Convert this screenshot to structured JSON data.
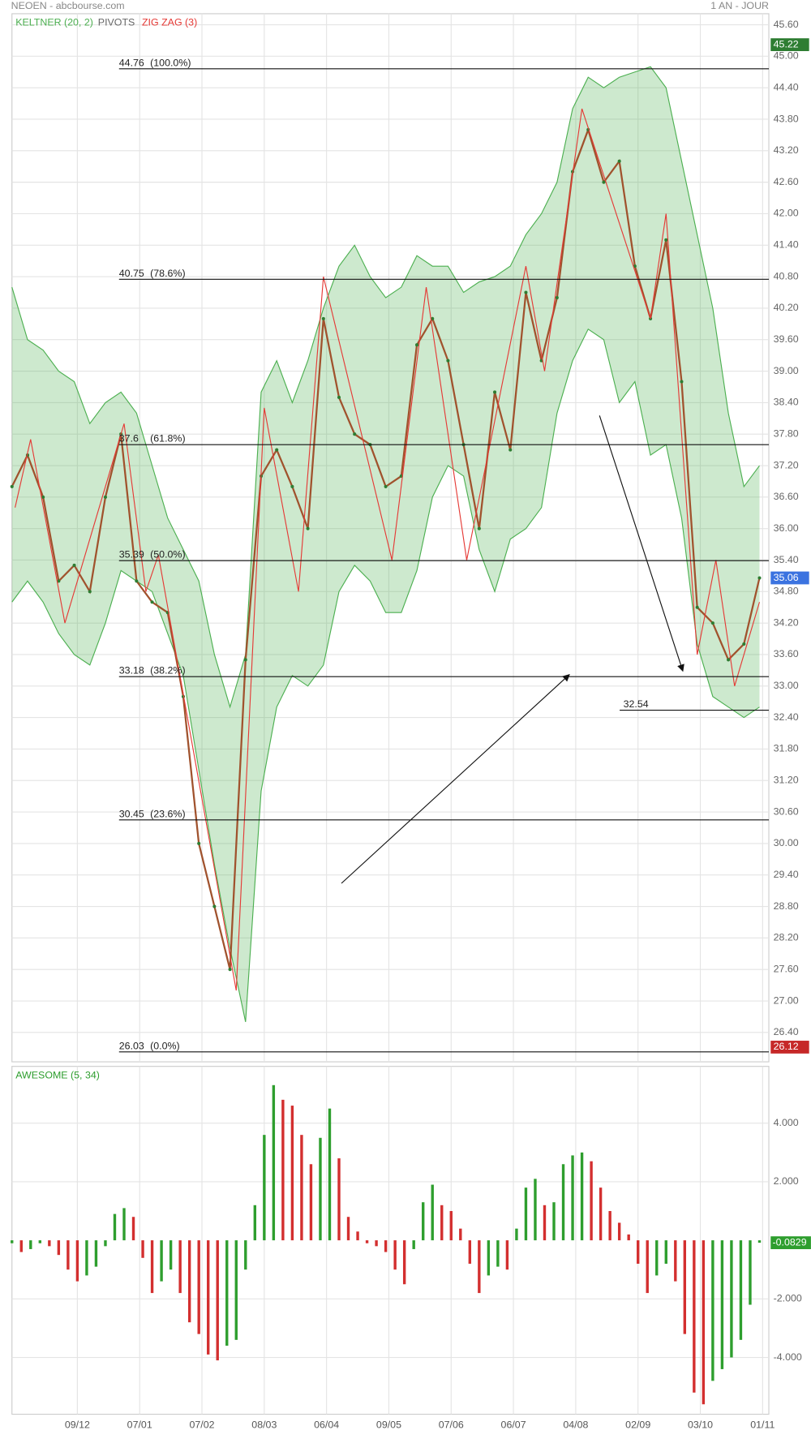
{
  "chart_data": [
    {
      "type": "line",
      "title": "NEOEN - abcbourse.com",
      "subtitle": "1 AN - JOUR",
      "xlim": [
        0,
        243
      ],
      "ylim": [
        25.84,
        45.81
      ],
      "grid": true,
      "xticks": [
        {
          "value": 21,
          "label": "09/12"
        },
        {
          "value": 41,
          "label": "07/01"
        },
        {
          "value": 61,
          "label": "07/02"
        },
        {
          "value": 81,
          "label": "08/03"
        },
        {
          "value": 101,
          "label": "06/04"
        },
        {
          "value": 121,
          "label": "09/05"
        },
        {
          "value": 141,
          "label": "07/06"
        },
        {
          "value": 161,
          "label": "06/07"
        },
        {
          "value": 181,
          "label": "04/08"
        },
        {
          "value": 201,
          "label": "02/09"
        },
        {
          "value": 221,
          "label": "03/10"
        },
        {
          "value": 241,
          "label": "01/11"
        }
      ],
      "yticks": [
        {
          "value": 26.4,
          "label": "26.40"
        },
        {
          "value": 27,
          "label": "27.00"
        },
        {
          "value": 27.6,
          "label": "27.60"
        },
        {
          "value": 28.2,
          "label": "28.20"
        },
        {
          "value": 28.8,
          "label": "28.80"
        },
        {
          "value": 29.4,
          "label": "29.40"
        },
        {
          "value": 30,
          "label": "30.00"
        },
        {
          "value": 30.6,
          "label": "30.60"
        },
        {
          "value": 31.2,
          "label": "31.20"
        },
        {
          "value": 31.8,
          "label": "31.80"
        },
        {
          "value": 32.4,
          "label": "32.40"
        },
        {
          "value": 33,
          "label": "33.00"
        },
        {
          "value": 33.6,
          "label": "33.60"
        },
        {
          "value": 34.2,
          "label": "34.20"
        },
        {
          "value": 34.8,
          "label": "34.80"
        },
        {
          "value": 35.4,
          "label": "35.40"
        },
        {
          "value": 36,
          "label": "36.00"
        },
        {
          "value": 36.6,
          "label": "36.60"
        },
        {
          "value": 37.2,
          "label": "37.20"
        },
        {
          "value": 37.8,
          "label": "37.80"
        },
        {
          "value": 38.4,
          "label": "38.40"
        },
        {
          "value": 39,
          "label": "39.00"
        },
        {
          "value": 39.6,
          "label": "39.60"
        },
        {
          "value": 40.2,
          "label": "40.20"
        },
        {
          "value": 40.8,
          "label": "40.80"
        },
        {
          "value": 41.4,
          "label": "41.40"
        },
        {
          "value": 42,
          "label": "42.00"
        },
        {
          "value": 42.6,
          "label": "42.60"
        },
        {
          "value": 43.2,
          "label": "43.20"
        },
        {
          "value": 43.8,
          "label": "43.80"
        },
        {
          "value": 44.4,
          "label": "44.40"
        },
        {
          "value": 45,
          "label": "45.00"
        },
        {
          "value": 45.6,
          "label": "45.60"
        }
      ],
      "x": [
        0,
        5,
        10,
        15,
        20,
        25,
        30,
        35,
        40,
        45,
        50,
        55,
        60,
        65,
        70,
        75,
        80,
        85,
        90,
        95,
        100,
        105,
        110,
        115,
        120,
        125,
        130,
        135,
        140,
        145,
        150,
        155,
        160,
        165,
        170,
        175,
        180,
        185,
        190,
        195,
        200,
        205,
        210,
        215,
        220,
        225,
        230,
        235,
        240
      ],
      "price": {
        "color": "#a0522d",
        "values": [
          36.8,
          37.4,
          36.6,
          35.0,
          35.3,
          34.8,
          36.6,
          37.8,
          35.0,
          34.6,
          34.4,
          32.8,
          30.0,
          28.8,
          27.6,
          33.5,
          37.0,
          37.5,
          36.8,
          36.0,
          40.0,
          38.5,
          37.8,
          37.6,
          36.8,
          37.0,
          39.5,
          40.0,
          39.2,
          37.6,
          36.0,
          38.6,
          37.5,
          40.5,
          39.2,
          40.4,
          42.8,
          43.6,
          42.6,
          43.0,
          41.0,
          40.0,
          41.5,
          38.8,
          34.5,
          34.2,
          33.5,
          33.8,
          35.06
        ]
      },
      "keltner": {
        "name": "KELTNER (20, 2)",
        "color": "#4caf50",
        "upper": [
          40.6,
          39.6,
          39.4,
          39.0,
          38.8,
          38.0,
          38.4,
          38.6,
          38.2,
          37.2,
          36.2,
          35.6,
          35.0,
          33.6,
          32.6,
          33.6,
          38.6,
          39.2,
          38.4,
          39.2,
          40.2,
          41.0,
          41.4,
          40.8,
          40.4,
          40.6,
          41.2,
          41.0,
          41.0,
          40.5,
          40.7,
          40.8,
          41.0,
          41.6,
          42.0,
          42.6,
          44.0,
          44.6,
          44.4,
          44.6,
          44.7,
          44.8,
          44.4,
          43.0,
          41.6,
          40.2,
          38.2,
          36.8,
          37.2
        ],
        "lower": [
          34.6,
          35.0,
          34.6,
          34.0,
          33.6,
          33.4,
          34.2,
          35.2,
          35.0,
          34.8,
          34.0,
          33.2,
          31.4,
          29.6,
          28.0,
          26.6,
          31.0,
          32.6,
          33.2,
          33.0,
          33.4,
          34.8,
          35.3,
          35.0,
          34.4,
          34.4,
          35.2,
          36.6,
          37.2,
          37.0,
          35.6,
          34.8,
          35.8,
          36.0,
          36.4,
          38.2,
          39.2,
          39.8,
          39.6,
          38.4,
          38.8,
          37.4,
          37.6,
          36.2,
          33.8,
          32.8,
          32.6,
          32.4,
          32.6
        ]
      },
      "pivots": {
        "name": "PIVOTS"
      },
      "zigzag": {
        "name": "ZIG ZAG (3)",
        "color": "#e53935",
        "x": [
          1,
          6,
          17,
          36,
          43,
          47,
          72,
          81,
          92,
          100,
          122,
          133,
          146,
          165,
          171,
          183,
          205,
          210,
          220,
          226,
          232,
          240
        ],
        "values": [
          36.4,
          37.7,
          34.2,
          38.0,
          34.8,
          35.5,
          27.2,
          38.3,
          34.8,
          40.8,
          35.4,
          40.6,
          35.4,
          41.0,
          39.0,
          44.0,
          40.0,
          42.0,
          33.6,
          35.4,
          33.0,
          34.6
        ]
      },
      "levels": [
        {
          "price": 44.76,
          "percent": "(100.0%)"
        },
        {
          "price": 40.75,
          "percent": "(78.6%)"
        },
        {
          "price": 37.6,
          "percent": "(61.8%)"
        },
        {
          "price": 35.39,
          "percent": "(50.0%)"
        },
        {
          "price": 33.18,
          "percent": "(38.2%)"
        },
        {
          "price": 30.45,
          "percent": "(23.6%)"
        },
        {
          "price": 26.03,
          "percent": "(0.0%)"
        }
      ],
      "support": 32.54,
      "high": 45.22,
      "last": 35.06,
      "low": 26.12
    },
    {
      "type": "bar",
      "title": "AWESOME (5, 34)",
      "ylim": [
        -5.94,
        5.94
      ],
      "yticks": [
        {
          "value": 4,
          "label": "4.000"
        },
        {
          "value": 2,
          "label": "2.000"
        },
        {
          "value": -2,
          "label": "-2.000"
        },
        {
          "value": -4,
          "label": "-4.000"
        }
      ],
      "up_color": "#2e9e2e",
      "down_color": "#d32f2f",
      "title_color": "#2e9e2e",
      "x": [
        0,
        3,
        6,
        9,
        12,
        15,
        18,
        21,
        24,
        27,
        30,
        33,
        36,
        39,
        42,
        45,
        48,
        51,
        54,
        57,
        60,
        63,
        66,
        69,
        72,
        75,
        78,
        81,
        84,
        87,
        90,
        93,
        96,
        99,
        102,
        105,
        108,
        111,
        114,
        117,
        120,
        123,
        126,
        129,
        132,
        135,
        138,
        141,
        144,
        147,
        150,
        153,
        156,
        159,
        162,
        165,
        168,
        171,
        174,
        177,
        180,
        183,
        186,
        189,
        192,
        195,
        198,
        201,
        204,
        207,
        210,
        213,
        216,
        219,
        222,
        225,
        228,
        231,
        234,
        237,
        240
      ],
      "values": [
        -0.1,
        -0.4,
        -0.3,
        -0.1,
        -0.2,
        -0.5,
        -1.0,
        -1.4,
        -1.2,
        -0.9,
        -0.2,
        0.9,
        1.1,
        0.8,
        -0.6,
        -1.8,
        -1.4,
        -1.0,
        -1.8,
        -2.8,
        -3.2,
        -3.9,
        -4.1,
        -3.6,
        -3.4,
        -1.0,
        1.2,
        3.6,
        5.3,
        4.8,
        4.6,
        3.6,
        2.6,
        3.5,
        4.5,
        2.8,
        0.8,
        0.3,
        -0.1,
        -0.2,
        -0.4,
        -1.0,
        -1.5,
        -0.3,
        1.3,
        1.9,
        1.2,
        1.0,
        0.4,
        -0.8,
        -1.8,
        -1.2,
        -0.9,
        -1.0,
        0.4,
        1.8,
        2.1,
        1.2,
        1.3,
        2.6,
        2.9,
        3.0,
        2.7,
        1.8,
        1.0,
        0.6,
        0.2,
        -0.8,
        -1.8,
        -1.2,
        -0.8,
        -1.4,
        -3.2,
        -5.2,
        -5.6,
        -4.8,
        -4.4,
        -4.0,
        -3.4,
        -2.2,
        -0.0829
      ]
    }
  ]
}
